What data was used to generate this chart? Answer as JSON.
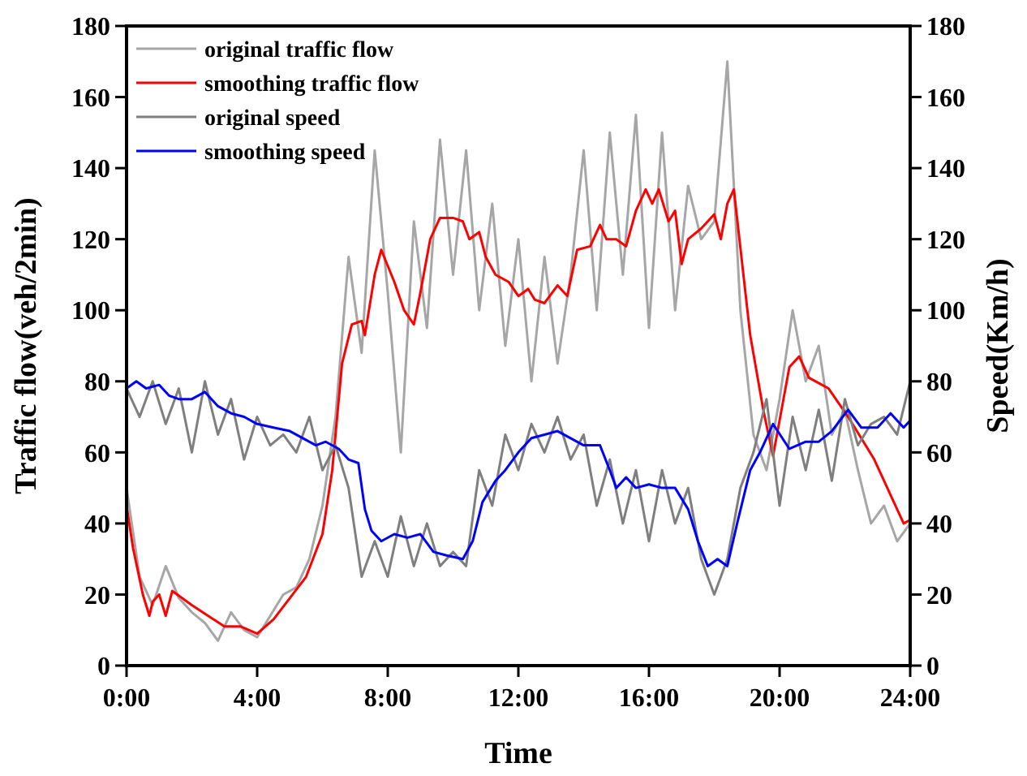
{
  "chart_data": {
    "type": "line",
    "xlabel": "Time",
    "ylabel": "Traffic flow(veh/2min)",
    "y2label": "Speed(Km/h)",
    "xlim": [
      0,
      24
    ],
    "xticks": [
      {
        "value": 0,
        "label": "0:00"
      },
      {
        "value": 4,
        "label": "4:00"
      },
      {
        "value": 8,
        "label": "8:00"
      },
      {
        "value": 12,
        "label": "12:00"
      },
      {
        "value": 16,
        "label": "16:00"
      },
      {
        "value": 20,
        "label": "20:00"
      },
      {
        "value": 24,
        "label": "24:00"
      }
    ],
    "ylim": [
      0,
      180
    ],
    "yticks": [
      0,
      20,
      40,
      60,
      80,
      100,
      120,
      140,
      160,
      180
    ],
    "y2lim": [
      0,
      180
    ],
    "y2ticks": [
      0,
      20,
      40,
      60,
      80,
      100,
      120,
      140,
      160,
      180
    ],
    "legend": "top left",
    "grid": false,
    "marker": "none",
    "line_style": "solid",
    "series": [
      {
        "name": "original traffic flow",
        "color": "#a6a6a6",
        "x": [
          0,
          0.4,
          0.8,
          1.2,
          1.6,
          2.0,
          2.4,
          2.8,
          3.2,
          3.6,
          4.0,
          4.4,
          4.8,
          5.2,
          5.6,
          6.0,
          6.4,
          6.8,
          7.2,
          7.6,
          8.0,
          8.4,
          8.8,
          9.2,
          9.6,
          10.0,
          10.4,
          10.8,
          11.2,
          11.6,
          12.0,
          12.4,
          12.8,
          13.2,
          13.6,
          14.0,
          14.4,
          14.8,
          15.2,
          15.6,
          16.0,
          16.4,
          16.8,
          17.2,
          17.6,
          18.0,
          18.4,
          18.8,
          19.2,
          19.6,
          20.0,
          20.4,
          20.8,
          21.2,
          21.6,
          22.0,
          22.4,
          22.8,
          23.2,
          23.6,
          24
        ],
        "values": [
          50,
          25,
          17,
          28,
          19,
          15,
          12,
          7,
          15,
          10,
          8,
          14,
          20,
          22,
          30,
          45,
          70,
          115,
          88,
          145,
          105,
          60,
          125,
          95,
          148,
          110,
          145,
          100,
          130,
          90,
          120,
          80,
          115,
          85,
          110,
          145,
          100,
          150,
          110,
          155,
          95,
          150,
          100,
          135,
          120,
          125,
          170,
          100,
          65,
          55,
          75,
          100,
          80,
          90,
          65,
          72,
          55,
          40,
          45,
          35,
          40
        ]
      },
      {
        "name": "smoothing traffic flow",
        "color": "#ff0000",
        "x": [
          0,
          0.2,
          0.5,
          0.7,
          0.8,
          1.0,
          1.2,
          1.4,
          2,
          2.5,
          3,
          3.5,
          4,
          4.5,
          5,
          5.5,
          6,
          6.3,
          6.6,
          6.9,
          7.2,
          7.3,
          7.6,
          7.8,
          8.2,
          8.5,
          8.8,
          9.0,
          9.3,
          9.6,
          10,
          10.3,
          10.5,
          10.8,
          11,
          11.3,
          11.7,
          12,
          12.3,
          12.5,
          12.8,
          13.2,
          13.5,
          13.8,
          14.2,
          14.5,
          14.7,
          15,
          15.3,
          15.6,
          15.9,
          16.1,
          16.3,
          16.6,
          16.8,
          17,
          17.2,
          17.6,
          18,
          18.2,
          18.4,
          18.6,
          19.1,
          19.5,
          19.8,
          20.3,
          20.6,
          20.9,
          21.5,
          22.1,
          22.9,
          23.8,
          24
        ],
        "values": [
          45,
          33,
          20,
          14,
          18,
          20,
          14,
          21,
          17,
          14,
          11,
          11,
          9,
          13,
          19,
          25,
          37,
          55,
          85,
          96,
          97,
          93,
          110,
          117,
          108,
          100,
          96,
          105,
          120,
          126,
          126,
          125,
          120,
          122,
          115,
          110,
          108,
          104,
          106,
          103,
          102,
          107,
          104,
          117,
          118,
          124,
          120,
          120,
          118,
          128,
          134,
          130,
          134,
          125,
          128,
          113,
          120,
          123,
          127,
          120,
          130,
          134,
          93,
          72,
          59,
          84,
          87,
          81,
          78,
          70,
          58,
          40,
          41
        ]
      },
      {
        "name": "original speed",
        "color": "#7f7f7f",
        "x": [
          0,
          0.4,
          0.8,
          1.2,
          1.6,
          2.0,
          2.4,
          2.8,
          3.2,
          3.6,
          4.0,
          4.4,
          4.8,
          5.2,
          5.6,
          6.0,
          6.4,
          6.8,
          7.2,
          7.6,
          8.0,
          8.4,
          8.8,
          9.2,
          9.6,
          10.0,
          10.4,
          10.8,
          11.2,
          11.6,
          12.0,
          12.4,
          12.8,
          13.2,
          13.6,
          14.0,
          14.4,
          14.8,
          15.2,
          15.6,
          16.0,
          16.4,
          16.8,
          17.2,
          17.6,
          18.0,
          18.4,
          18.8,
          19.2,
          19.6,
          20.0,
          20.4,
          20.8,
          21.2,
          21.6,
          22.0,
          22.4,
          22.8,
          23.2,
          23.6,
          24
        ],
        "values": [
          78,
          70,
          80,
          68,
          78,
          60,
          80,
          65,
          75,
          58,
          70,
          62,
          65,
          60,
          70,
          55,
          62,
          50,
          25,
          35,
          25,
          42,
          28,
          40,
          28,
          32,
          28,
          55,
          45,
          65,
          55,
          68,
          60,
          70,
          58,
          65,
          45,
          58,
          40,
          55,
          35,
          55,
          40,
          50,
          30,
          20,
          30,
          50,
          60,
          75,
          45,
          70,
          55,
          72,
          52,
          75,
          62,
          68,
          70,
          65,
          80
        ]
      },
      {
        "name": "smoothing speed",
        "color": "#0000ff",
        "x": [
          0,
          0.3,
          0.6,
          1,
          1.3,
          1.6,
          2,
          2.4,
          2.8,
          3.2,
          3.6,
          4,
          4.5,
          5,
          5.4,
          5.8,
          6.1,
          6.5,
          6.8,
          7.1,
          7.3,
          7.5,
          7.8,
          8.2,
          8.6,
          9,
          9.4,
          9.8,
          10.3,
          10.6,
          10.9,
          11.3,
          11.6,
          12,
          12.4,
          12.8,
          13.2,
          13.6,
          14,
          14.5,
          14.8,
          15,
          15.3,
          15.6,
          16,
          16.4,
          16.8,
          17.2,
          17.5,
          17.8,
          18.1,
          18.4,
          18.7,
          19.1,
          19.4,
          19.8,
          20.3,
          20.8,
          21.2,
          21.6,
          22.1,
          22.5,
          23,
          23.4,
          23.8,
          24
        ],
        "values": [
          78,
          80,
          78,
          79,
          76,
          75,
          75,
          77,
          73,
          71,
          70,
          68,
          67,
          66,
          64,
          62,
          63,
          61,
          58,
          57,
          44,
          38,
          35,
          37,
          36,
          37,
          32,
          31,
          30,
          35,
          46,
          52,
          55,
          60,
          64,
          65,
          66,
          64,
          62,
          62,
          55,
          50,
          53,
          50,
          51,
          50,
          50,
          44,
          35,
          28,
          30,
          28,
          40,
          55,
          60,
          68,
          61,
          63,
          63,
          66,
          72,
          67,
          67,
          71,
          67,
          69
        ]
      }
    ]
  }
}
